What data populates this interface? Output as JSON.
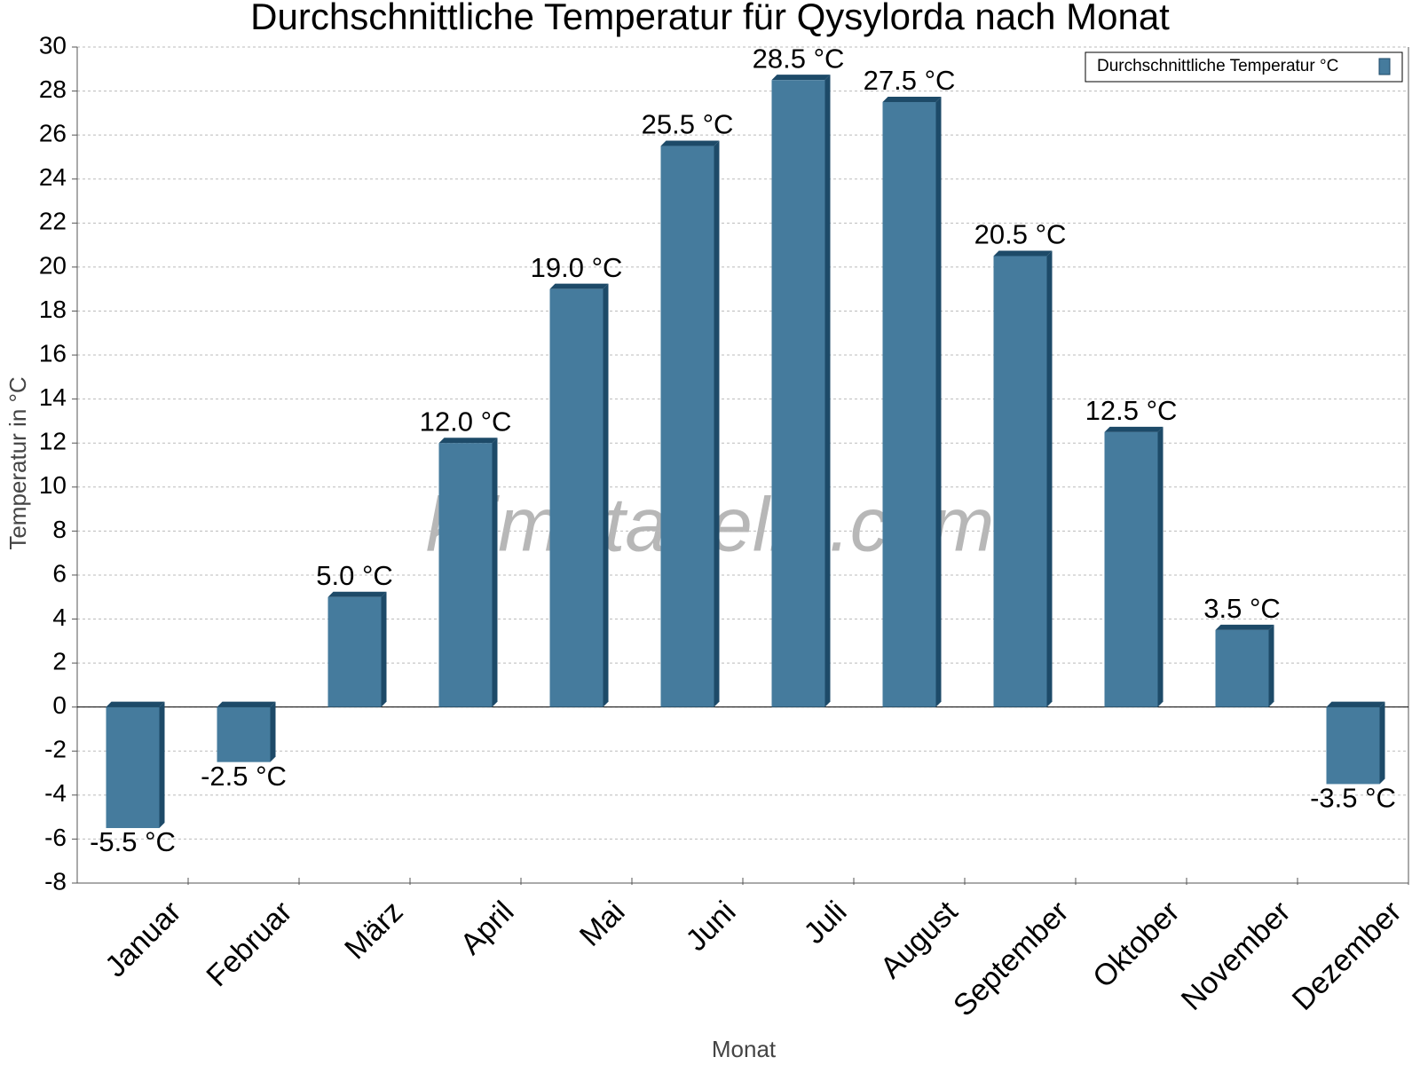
{
  "chart_data": {
    "type": "bar",
    "title": "Durchschnittliche Temperatur für Qysylorda nach Monat",
    "x_label": "Monat",
    "y_label": "Temperatur in °C",
    "watermark": "klimatabelle.com",
    "categories": [
      "Januar",
      "Februar",
      "März",
      "April",
      "Mai",
      "Juni",
      "Juli",
      "August",
      "September",
      "Oktober",
      "November",
      "Dezember"
    ],
    "series": [
      {
        "name": "Durchschnittliche Temperatur °C",
        "color": "#457b9d",
        "values": [
          -5.5,
          -2.5,
          5.0,
          12.0,
          19.0,
          25.5,
          28.5,
          27.5,
          20.5,
          12.5,
          3.5,
          -3.5
        ],
        "value_labels": [
          "-5.5 °C",
          "-2.5 °C",
          "5.0 °C",
          "12.0 °C",
          "19.0 °C",
          "25.5 °C",
          "28.5 °C",
          "27.5 °C",
          "20.5 °C",
          "12.5 °C",
          "3.5 °C",
          "-3.5 °C"
        ]
      }
    ],
    "ylim": [
      -8,
      30
    ],
    "yticks": [
      -8,
      -6,
      -4,
      -2,
      0,
      2,
      4,
      6,
      8,
      10,
      12,
      14,
      16,
      18,
      20,
      22,
      24,
      26,
      28,
      30
    ],
    "grid": true,
    "legend": "top-right"
  }
}
